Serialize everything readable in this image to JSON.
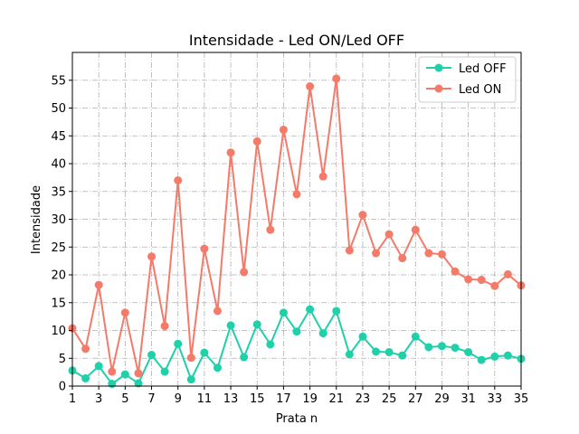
{
  "chart_data": {
    "type": "line",
    "title": "Intensidade - Led ON/Led OFF",
    "xlabel": "Prata n",
    "ylabel": "Intensidade",
    "xlim": [
      1,
      35
    ],
    "ylim": [
      0,
      60
    ],
    "xticks": [
      1,
      3,
      5,
      7,
      9,
      11,
      13,
      15,
      17,
      19,
      21,
      23,
      25,
      27,
      29,
      31,
      33,
      35
    ],
    "yticks": [
      0,
      5,
      10,
      15,
      20,
      25,
      30,
      35,
      40,
      45,
      50,
      55
    ],
    "grid": true,
    "legend_position": "top-right",
    "x": [
      1,
      2,
      3,
      4,
      5,
      6,
      7,
      8,
      9,
      10,
      11,
      12,
      13,
      14,
      15,
      16,
      17,
      18,
      19,
      20,
      21,
      22,
      23,
      24,
      25,
      26,
      27,
      28,
      29,
      30,
      31,
      32,
      33,
      34,
      35
    ],
    "series": [
      {
        "name": "Led OFF",
        "color": "#1fd0a8",
        "values": [
          2.8,
          1.4,
          3.6,
          0.4,
          2.1,
          0.5,
          5.6,
          2.6,
          7.6,
          1.2,
          6.0,
          3.3,
          10.9,
          5.2,
          11.1,
          7.5,
          13.2,
          9.8,
          13.8,
          9.5,
          13.5,
          5.7,
          8.9,
          6.2,
          6.1,
          5.5,
          8.9,
          7.0,
          7.2,
          6.9,
          6.1,
          4.7,
          5.3,
          5.5,
          4.9
        ]
      },
      {
        "name": "Led ON",
        "color": "#f47a6a",
        "values": [
          10.4,
          6.7,
          18.2,
          2.6,
          13.2,
          2.3,
          23.3,
          10.8,
          37.0,
          5.1,
          24.7,
          13.5,
          42.0,
          20.5,
          44.0,
          28.1,
          46.1,
          34.5,
          53.9,
          37.7,
          55.3,
          24.4,
          30.8,
          23.9,
          27.3,
          23.0,
          28.1,
          23.9,
          23.7,
          20.6,
          19.2,
          19.1,
          18.0,
          20.1,
          18.1
        ]
      }
    ]
  }
}
